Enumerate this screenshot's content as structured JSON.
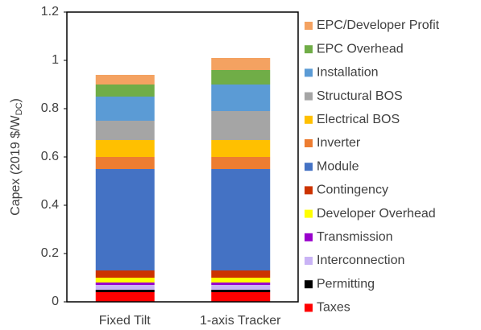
{
  "chart_data": {
    "type": "stacked_bar",
    "y_label": {
      "text": "Capex (2019 $/W",
      "subscript": "DC",
      "suffix": ")"
    },
    "categories": [
      "Fixed Tilt",
      "1-axis Tracker"
    ],
    "series": [
      {
        "name": "Taxes",
        "color": "#ff0000",
        "values": [
          0.04,
          0.04
        ]
      },
      {
        "name": "Permitting",
        "color": "#000000",
        "values": [
          0.01,
          0.01
        ]
      },
      {
        "name": "Interconnection",
        "color": "#c9b3f5",
        "values": [
          0.02,
          0.02
        ]
      },
      {
        "name": "Transmission",
        "color": "#9900cc",
        "values": [
          0.01,
          0.01
        ]
      },
      {
        "name": "Developer Overhead",
        "color": "#ffff00",
        "values": [
          0.02,
          0.02
        ]
      },
      {
        "name": "Contingency",
        "color": "#cc3300",
        "values": [
          0.03,
          0.03
        ]
      },
      {
        "name": "Module",
        "color": "#4472c4",
        "values": [
          0.42,
          0.42
        ]
      },
      {
        "name": "Inverter",
        "color": "#ed7d31",
        "values": [
          0.05,
          0.05
        ]
      },
      {
        "name": "Electrical BOS",
        "color": "#ffc000",
        "values": [
          0.07,
          0.07
        ]
      },
      {
        "name": "Structural BOS",
        "color": "#a5a5a5",
        "values": [
          0.08,
          0.12
        ]
      },
      {
        "name": "Installation",
        "color": "#5b9bd5",
        "values": [
          0.1,
          0.11
        ]
      },
      {
        "name": "EPC Overhead",
        "color": "#70ad47",
        "values": [
          0.05,
          0.06
        ]
      },
      {
        "name": "EPC/Developer Profit",
        "color": "#f4a261",
        "values": [
          0.04,
          0.05
        ]
      }
    ],
    "ylim": [
      0,
      1.2
    ],
    "yticks": [
      0,
      0.2,
      0.4,
      0.6,
      0.8,
      1,
      1.2
    ],
    "grid": false,
    "legend": "right"
  }
}
